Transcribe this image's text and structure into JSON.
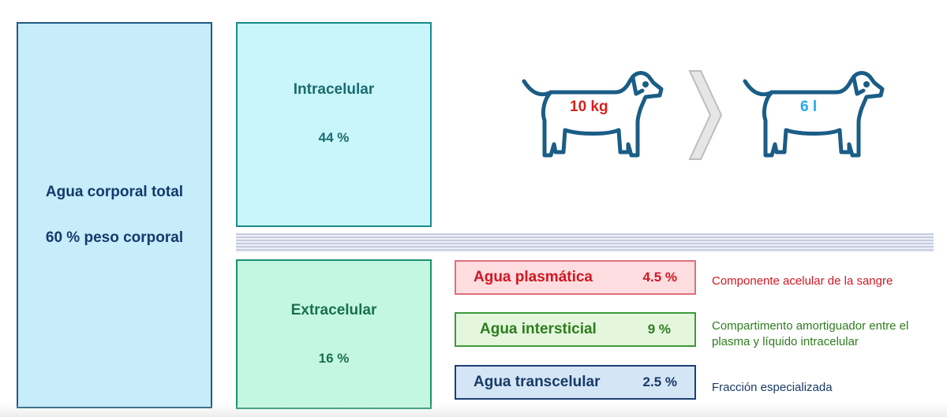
{
  "total": {
    "title": "Agua corporal total",
    "subtitle": "60 % peso corporal"
  },
  "intracellular": {
    "title": "Intracelular",
    "percent": "44 %"
  },
  "extracellular": {
    "title": "Extracelular",
    "percent": "16 %"
  },
  "subcompartments": [
    {
      "name": "Agua plasmática",
      "percent": "4.5 %",
      "description": "Componente acelular de la sangre",
      "color": "#d11722"
    },
    {
      "name": "Agua intersticial",
      "percent": "9 %",
      "description": "Compartimento amortiguador entre el plasma y líquido intracelular",
      "color": "#2e7d1e"
    },
    {
      "name": "Agua transcelular",
      "percent": "2.5 %",
      "description": "Fracción especializada",
      "color": "#183a68"
    }
  ],
  "example": {
    "weight": "10 kg",
    "volume": "6 l"
  },
  "colors": {
    "dog_outline": "#1a5d86",
    "arrow": "#c4c4c4"
  }
}
